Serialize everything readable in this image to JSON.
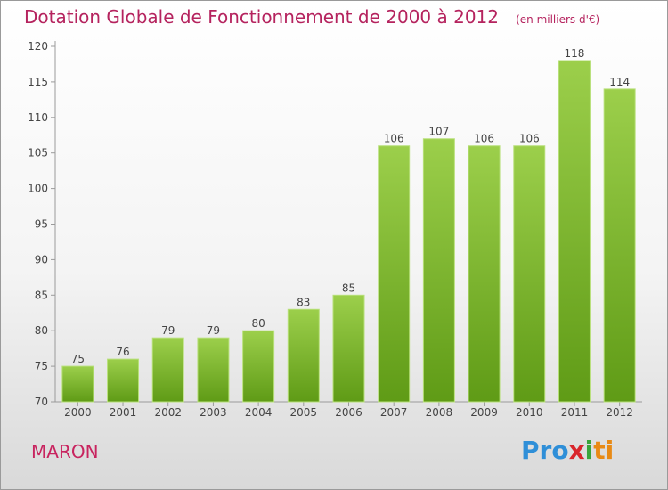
{
  "title": "Dotation Globale de Fonctionnement de 2000 à 2012",
  "units": "(en milliers d'€)",
  "commune": "MARON",
  "logo": {
    "p1": "Pro",
    "p2": "x",
    "p3": "i",
    "p4": "ti"
  },
  "colors": {
    "bar_top": "#9ccf4b",
    "bar_bottom": "#5f9b16",
    "title": "#b5235e",
    "axis": "#9a9a9a"
  },
  "chart_data": {
    "type": "bar",
    "categories": [
      "2000",
      "2001",
      "2002",
      "2003",
      "2004",
      "2005",
      "2006",
      "2007",
      "2008",
      "2009",
      "2010",
      "2011",
      "2012"
    ],
    "values": [
      75,
      76,
      79,
      79,
      80,
      83,
      85,
      106,
      107,
      106,
      106,
      118,
      114
    ],
    "yticks": [
      70,
      75,
      80,
      85,
      90,
      95,
      100,
      105,
      110,
      115,
      120
    ],
    "ylim": [
      70,
      120
    ],
    "grid": false,
    "value_labels": true
  }
}
